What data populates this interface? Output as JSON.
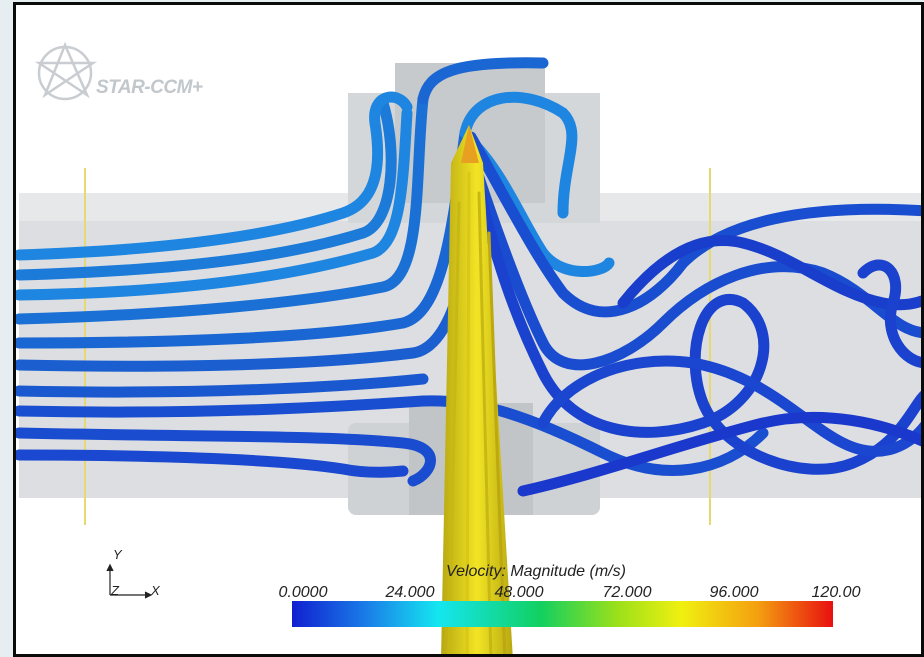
{
  "viewport": {
    "logo": {
      "text": "STAR-CCM+"
    },
    "triad": {
      "y_label": "Y",
      "z_label": "Z",
      "x_label": "X"
    },
    "legend": {
      "title": "Velocity: Magnitude (m/s)",
      "ticks": [
        "0.0000",
        "24.000",
        "48.000",
        "72.000",
        "96.000",
        "120.00"
      ],
      "min": 0,
      "max": 120,
      "colormap": [
        "#1020d0",
        "#1a7fe8",
        "#14e6f0",
        "#12d060",
        "#9ae01a",
        "#f0f010",
        "#f4a010",
        "#e81010"
      ]
    },
    "colors": {
      "slow_tube": "#1a55d8",
      "mid_tube": "#1e86e0",
      "fast_jet": "#e0d21a"
    }
  }
}
